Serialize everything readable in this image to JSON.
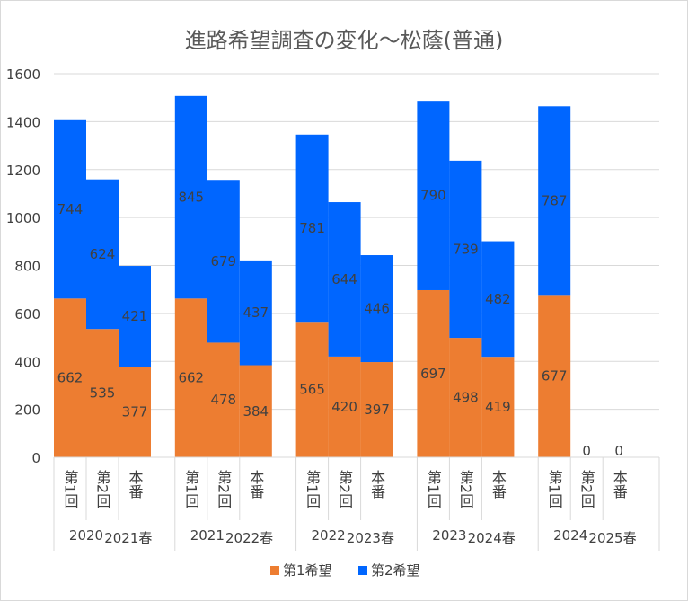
{
  "chart_data": {
    "type": "bar",
    "stacked": true,
    "title": "進路希望調査の変化～松蔭(普通)",
    "xlabel": "",
    "ylabel": "",
    "ylim": [
      0,
      1600
    ],
    "yticks": [
      0,
      200,
      400,
      600,
      800,
      1000,
      1200,
      1400,
      1600
    ],
    "grid": true,
    "legend_position": "bottom",
    "category_groups": [
      {
        "year_label": "2020",
        "spring_label": "2021春"
      },
      {
        "year_label": "2021",
        "spring_label": "2022春"
      },
      {
        "year_label": "2022",
        "spring_label": "2023春"
      },
      {
        "year_label": "2023",
        "spring_label": "2024春"
      },
      {
        "year_label": "2024",
        "spring_label": "2025春"
      }
    ],
    "categories": [
      "第1回",
      "第2回",
      "本番",
      "第1回",
      "第2回",
      "本番",
      "第1回",
      "第2回",
      "本番",
      "第1回",
      "第2回",
      "本番",
      "第1回",
      "第2回",
      "本番"
    ],
    "series": [
      {
        "name": "第1希望",
        "color": "#ED7D31",
        "values": [
          662,
          535,
          377,
          662,
          478,
          384,
          565,
          420,
          397,
          697,
          498,
          419,
          677,
          0,
          0
        ]
      },
      {
        "name": "第2希望",
        "color": "#0066FF",
        "values": [
          744,
          624,
          421,
          845,
          679,
          437,
          781,
          644,
          446,
          790,
          739,
          482,
          787,
          0,
          0
        ]
      }
    ]
  }
}
